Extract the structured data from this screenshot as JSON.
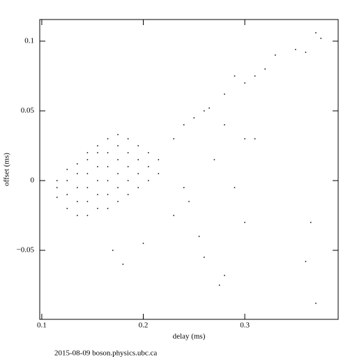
{
  "chart_data": {
    "type": "scatter",
    "xlabel": "delay (ms)",
    "ylabel": "offset (ms)",
    "footer": "2015-08-09  boson.physics.ubc.ca",
    "color": "#000000",
    "xlim": [
      0.098,
      0.392
    ],
    "ylim": [
      -0.0995,
      0.1155
    ],
    "xticks": [
      0.1,
      0.2,
      0.3
    ],
    "yticks": [
      {
        "value": -0.05,
        "label": "−0.05"
      },
      0,
      0.05,
      0.1
    ],
    "x": [
      0.115,
      0.115,
      0.115,
      0.125,
      0.125,
      0.125,
      0.125,
      0.135,
      0.135,
      0.135,
      0.135,
      0.135,
      0.145,
      0.145,
      0.145,
      0.145,
      0.145,
      0.145,
      0.155,
      0.155,
      0.155,
      0.155,
      0.155,
      0.155,
      0.165,
      0.165,
      0.165,
      0.165,
      0.165,
      0.165,
      0.175,
      0.175,
      0.175,
      0.175,
      0.175,
      0.175,
      0.185,
      0.185,
      0.185,
      0.185,
      0.185,
      0.195,
      0.195,
      0.195,
      0.195,
      0.205,
      0.205,
      0.205,
      0.215,
      0.215,
      0.23,
      0.24,
      0.25,
      0.26,
      0.265,
      0.28,
      0.29,
      0.3,
      0.31,
      0.32,
      0.33,
      0.35,
      0.37,
      0.375,
      0.36,
      0.275,
      0.28,
      0.26,
      0.255,
      0.3,
      0.36,
      0.365,
      0.37,
      0.17,
      0.18,
      0.2,
      0.3,
      0.31,
      0.28,
      0.24,
      0.245,
      0.23,
      0.27,
      0.29
    ],
    "y": [
      -0.012,
      -0.005,
      0.0,
      -0.02,
      -0.01,
      0.0,
      0.008,
      -0.025,
      -0.015,
      -0.005,
      0.005,
      0.012,
      -0.025,
      -0.015,
      -0.005,
      0.005,
      0.015,
      0.02,
      -0.02,
      -0.01,
      0.0,
      0.01,
      0.02,
      0.025,
      -0.02,
      -0.01,
      0.0,
      0.01,
      0.02,
      0.03,
      -0.015,
      -0.005,
      0.005,
      0.015,
      0.025,
      0.033,
      -0.01,
      0.0,
      0.01,
      0.02,
      0.03,
      -0.005,
      0.005,
      0.015,
      0.025,
      0.0,
      0.01,
      0.02,
      0.005,
      0.015,
      0.03,
      0.04,
      0.045,
      0.05,
      0.052,
      0.062,
      0.075,
      0.07,
      0.075,
      0.08,
      0.09,
      0.094,
      0.106,
      0.102,
      0.092,
      -0.075,
      -0.068,
      -0.055,
      -0.04,
      -0.03,
      -0.058,
      -0.03,
      -0.088,
      -0.05,
      -0.06,
      -0.045,
      0.03,
      0.03,
      0.04,
      -0.005,
      -0.015,
      -0.025,
      0.015,
      -0.005
    ]
  }
}
